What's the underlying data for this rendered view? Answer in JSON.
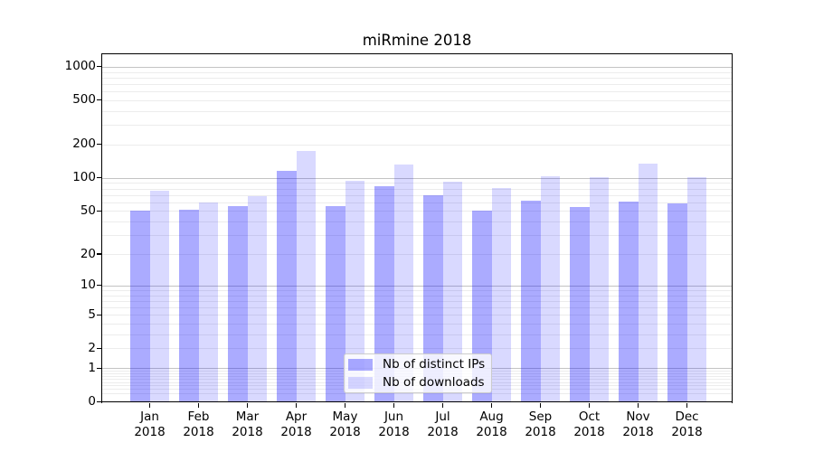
{
  "chart_data": {
    "type": "bar",
    "title": "miRmine 2018",
    "categories": [
      "Jan 2018",
      "Feb 2018",
      "Mar 2018",
      "Apr 2018",
      "May 2018",
      "Jun 2018",
      "Jul 2018",
      "Aug 2018",
      "Sep 2018",
      "Oct 2018",
      "Nov 2018",
      "Dec 2018"
    ],
    "series": [
      {
        "name": "Nb of distinct IPs",
        "color": "rgba(0,0,255,0.33)",
        "values": [
          50,
          51,
          56,
          115,
          56,
          84,
          70,
          50,
          62,
          54,
          61,
          59
        ]
      },
      {
        "name": "Nb of downloads",
        "color": "rgba(0,0,255,0.15)",
        "values": [
          76,
          60,
          68,
          175,
          95,
          132,
          93,
          81,
          104,
          102,
          136,
          102
        ]
      }
    ],
    "yticks": [
      0,
      1,
      2,
      5,
      10,
      20,
      50,
      100,
      200,
      500,
      1000
    ],
    "yscale": "log10(value+1)",
    "ylim": [
      0,
      1310
    ],
    "xlabel": "",
    "ylabel": "",
    "grid": "on",
    "legend_position": "lower center",
    "colors": {
      "bar_distinct_ips": "rgba(0,0,255,0.33)",
      "bar_downloads": "rgba(0,0,255,0.15)",
      "grid_major": "#c3c3c3",
      "grid_minor": "#ececec",
      "spine": "#000000"
    }
  }
}
